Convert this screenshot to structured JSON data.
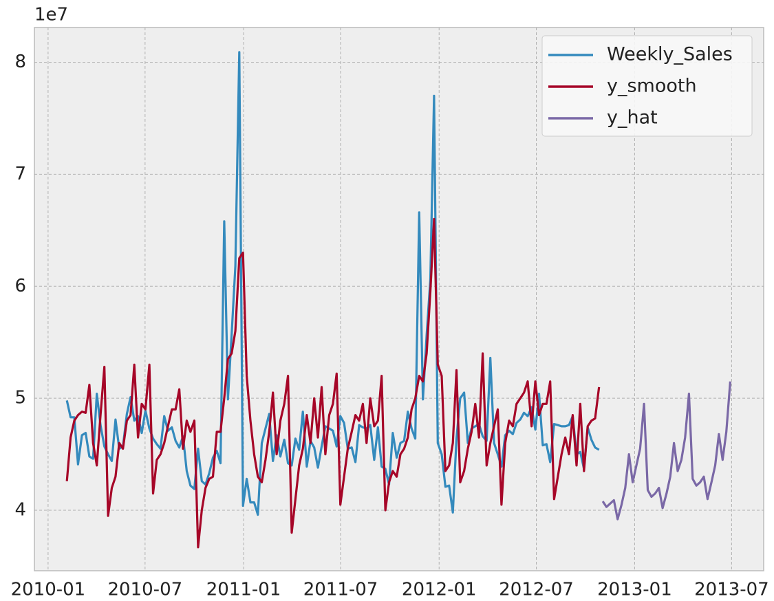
{
  "chart_data": {
    "type": "line",
    "y_offset_label": "1e7",
    "xlim": [
      2009.93,
      2013.66
    ],
    "ylim": [
      3.46,
      8.31
    ],
    "xticks": [
      {
        "value": 2010.0,
        "label": "2010-01"
      },
      {
        "value": 2010.496,
        "label": "2010-07"
      },
      {
        "value": 2011.0,
        "label": "2011-01"
      },
      {
        "value": 2011.496,
        "label": "2011-07"
      },
      {
        "value": 2012.0,
        "label": "2012-01"
      },
      {
        "value": 2012.497,
        "label": "2012-07"
      },
      {
        "value": 2013.0,
        "label": "2013-01"
      },
      {
        "value": 2013.496,
        "label": "2013-07"
      }
    ],
    "yticks": [
      4,
      5,
      6,
      7,
      8
    ],
    "grid": true,
    "legend": "upper right",
    "x": [
      2010.096,
      2010.115,
      2010.134,
      2010.153,
      2010.173,
      2010.192,
      2010.211,
      2010.23,
      2010.249,
      2010.268,
      2010.288,
      2010.307,
      2010.326,
      2010.345,
      2010.364,
      2010.383,
      2010.403,
      2010.422,
      2010.441,
      2010.46,
      2010.479,
      2010.498,
      2010.518,
      2010.537,
      2010.556,
      2010.575,
      2010.594,
      2010.613,
      2010.633,
      2010.652,
      2010.671,
      2010.69,
      2010.709,
      2010.728,
      2010.748,
      2010.767,
      2010.786,
      2010.805,
      2010.824,
      2010.843,
      2010.863,
      2010.882,
      2010.901,
      2010.92,
      2010.939,
      2010.958,
      2010.978,
      2010.997,
      2011.016,
      2011.035,
      2011.054,
      2011.073,
      2011.093,
      2011.112,
      2011.131,
      2011.15,
      2011.169,
      2011.188,
      2011.208,
      2011.227,
      2011.246,
      2011.265,
      2011.284,
      2011.303,
      2011.323,
      2011.342,
      2011.361,
      2011.38,
      2011.399,
      2011.418,
      2011.438,
      2011.457,
      2011.476,
      2011.495,
      2011.514,
      2011.533,
      2011.553,
      2011.572,
      2011.591,
      2011.61,
      2011.629,
      2011.648,
      2011.668,
      2011.687,
      2011.706,
      2011.725,
      2011.744,
      2011.763,
      2011.783,
      2011.802,
      2011.821,
      2011.84,
      2011.859,
      2011.878,
      2011.898,
      2011.917,
      2011.936,
      2011.955,
      2011.974,
      2011.993,
      2012.013,
      2012.032,
      2012.051,
      2012.07,
      2012.089,
      2012.108,
      2012.128,
      2012.147,
      2012.166,
      2012.185,
      2012.204,
      2012.223,
      2012.243,
      2012.262,
      2012.281,
      2012.3,
      2012.319,
      2012.338,
      2012.358,
      2012.377,
      2012.396,
      2012.415,
      2012.434,
      2012.453,
      2012.473,
      2012.492,
      2012.511,
      2012.53,
      2012.549,
      2012.568,
      2012.588,
      2012.607,
      2012.626,
      2012.645,
      2012.664,
      2012.683,
      2012.703,
      2012.722,
      2012.741,
      2012.76,
      2012.779,
      2012.798,
      2012.818
    ],
    "series": [
      {
        "name": "Weekly_Sales",
        "color": "#348abd",
        "values": [
          4.98,
          4.83,
          4.83,
          4.41,
          4.67,
          4.69,
          4.48,
          4.46,
          5.04,
          4.76,
          4.57,
          4.5,
          4.44,
          4.81,
          4.55,
          4.57,
          4.86,
          5.01,
          4.8,
          4.84,
          4.69,
          4.89,
          4.73,
          4.64,
          4.59,
          4.55,
          4.84,
          4.71,
          4.74,
          4.62,
          4.56,
          4.66,
          4.35,
          4.22,
          4.19,
          4.55,
          4.26,
          4.23,
          4.33,
          4.47,
          4.53,
          4.42,
          6.58,
          4.99,
          5.57,
          6.18,
          8.09,
          4.04,
          4.28,
          4.07,
          4.07,
          3.96,
          4.6,
          4.73,
          4.86,
          4.44,
          4.67,
          4.48,
          4.63,
          4.42,
          4.4,
          4.64,
          4.54,
          4.88,
          4.39,
          4.62,
          4.56,
          4.38,
          4.57,
          4.75,
          4.73,
          4.71,
          4.57,
          4.84,
          4.78,
          4.55,
          4.56,
          4.43,
          4.76,
          4.74,
          4.73,
          4.76,
          4.45,
          4.74,
          4.39,
          4.37,
          4.23,
          4.69,
          4.47,
          4.6,
          4.62,
          4.88,
          4.73,
          4.64,
          6.66,
          4.99,
          5.56,
          6.06,
          7.7,
          4.6,
          4.5,
          4.21,
          4.22,
          3.98,
          4.64,
          5.0,
          5.05,
          4.6,
          4.73,
          4.75,
          4.77,
          4.66,
          4.62,
          5.36,
          4.6,
          4.5,
          4.39,
          4.67,
          4.71,
          4.68,
          4.78,
          4.81,
          4.87,
          4.84,
          4.92,
          4.72,
          5.04,
          4.58,
          4.59,
          4.43,
          4.77,
          4.76,
          4.75,
          4.75,
          4.76,
          4.84,
          4.5,
          4.52,
          4.37,
          4.74,
          4.63,
          4.56,
          4.54
        ]
      },
      {
        "name": "y_smooth",
        "color": "#a60628",
        "values": [
          4.26,
          4.65,
          4.8,
          4.85,
          4.88,
          4.87,
          5.12,
          4.6,
          4.4,
          4.85,
          5.28,
          3.95,
          4.2,
          4.3,
          4.6,
          4.55,
          4.8,
          4.85,
          5.3,
          4.65,
          4.95,
          4.9,
          5.3,
          4.15,
          4.45,
          4.5,
          4.6,
          4.75,
          4.9,
          4.9,
          5.08,
          4.55,
          4.8,
          4.7,
          4.8,
          3.67,
          4.0,
          4.2,
          4.28,
          4.3,
          4.7,
          4.7,
          5.0,
          5.35,
          5.4,
          5.6,
          6.25,
          6.3,
          5.2,
          4.8,
          4.5,
          4.3,
          4.25,
          4.45,
          4.7,
          5.05,
          4.5,
          4.8,
          4.95,
          5.2,
          3.8,
          4.1,
          4.4,
          4.55,
          4.85,
          4.6,
          5.0,
          4.65,
          5.1,
          4.5,
          4.85,
          4.95,
          5.22,
          4.05,
          4.3,
          4.55,
          4.7,
          4.85,
          4.8,
          4.95,
          4.6,
          5.0,
          4.75,
          4.8,
          5.2,
          4.0,
          4.25,
          4.35,
          4.3,
          4.5,
          4.55,
          4.65,
          4.9,
          5.0,
          5.2,
          5.15,
          5.4,
          5.95,
          6.6,
          5.3,
          5.2,
          4.35,
          4.4,
          4.6,
          5.25,
          4.25,
          4.35,
          4.55,
          4.7,
          4.95,
          4.65,
          5.4,
          4.4,
          4.6,
          4.75,
          4.9,
          4.05,
          4.6,
          4.8,
          4.75,
          4.95,
          5.0,
          5.05,
          5.15,
          4.75,
          5.15,
          4.85,
          4.95,
          4.95,
          5.15,
          4.1,
          4.3,
          4.5,
          4.65,
          4.5,
          4.85,
          4.4,
          4.95,
          4.35,
          4.75,
          4.8,
          4.82,
          5.1
        ]
      },
      {
        "name": "y_hat",
        "color": "#7a68a6",
        "x": [
          2012.837,
          2012.856,
          2012.875,
          2012.894,
          2012.913,
          2012.933,
          2012.952,
          2012.971,
          2012.99,
          2013.009,
          2013.028,
          2013.048,
          2013.067,
          2013.086,
          2013.105,
          2013.124,
          2013.143,
          2013.163,
          2013.182,
          2013.201,
          2013.22,
          2013.239,
          2013.258,
          2013.278,
          2013.297,
          2013.316,
          2013.335,
          2013.354,
          2013.373,
          2013.393,
          2013.412,
          2013.431,
          2013.45,
          2013.469,
          2013.489
        ],
        "values": [
          4.08,
          4.03,
          4.06,
          4.09,
          3.92,
          4.05,
          4.2,
          4.5,
          4.25,
          4.4,
          4.55,
          4.95,
          4.18,
          4.12,
          4.15,
          4.2,
          4.02,
          4.15,
          4.3,
          4.6,
          4.35,
          4.45,
          4.65,
          5.04,
          4.28,
          4.22,
          4.25,
          4.3,
          4.1,
          4.25,
          4.4,
          4.68,
          4.45,
          4.7,
          5.15
        ]
      }
    ]
  }
}
